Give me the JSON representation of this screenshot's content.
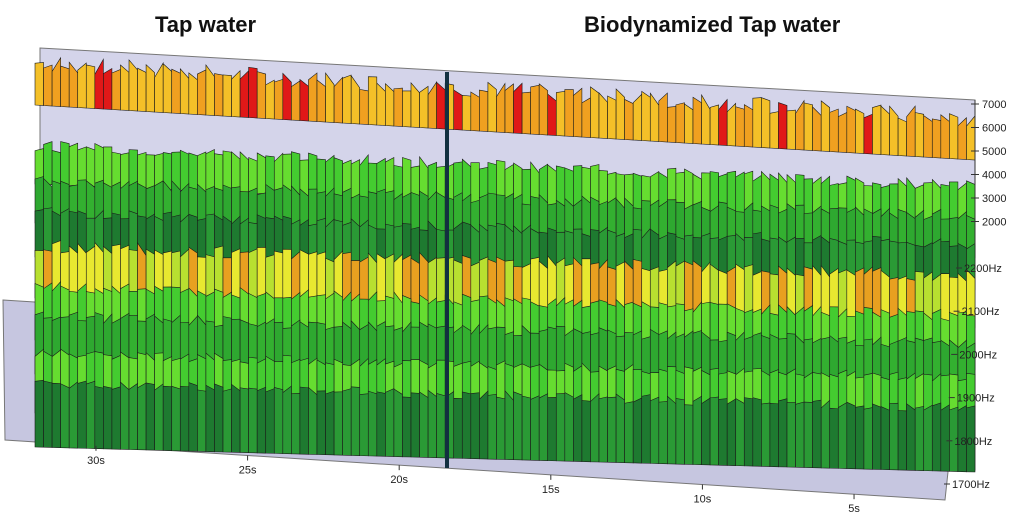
{
  "titles": {
    "left": "Tap water",
    "right": "Biodynamized Tap water"
  },
  "chart_data": {
    "type": "surface",
    "panels": [
      "Tap water",
      "Biodynamized Tap water"
    ],
    "x_tick_labels": [
      "30s",
      "25s",
      "20s",
      "15s",
      "10s",
      "5s"
    ],
    "x_ticks_seconds": [
      30,
      25,
      20,
      15,
      10,
      5
    ],
    "x_range_seconds": [
      33,
      2
    ],
    "divider_at_seconds": 17.5,
    "y_tick_labels": [
      "1700Hz",
      "1800Hz",
      "1900Hz",
      "2000Hz",
      "2100Hz",
      "2200Hz"
    ],
    "y_range_hz": [
      1700,
      2200
    ],
    "z_tick_labels": [
      "2000",
      "3000",
      "4000",
      "5000",
      "6000",
      "7000"
    ],
    "z_range": [
      1000,
      7000
    ],
    "color_scale": {
      "low": "#1f8a1f",
      "mid": "#e8e830",
      "high": "#e01010"
    },
    "colors": {
      "floor": "#c9c9e3",
      "wall": "#d4d4ea",
      "divider": "#123040"
    }
  }
}
